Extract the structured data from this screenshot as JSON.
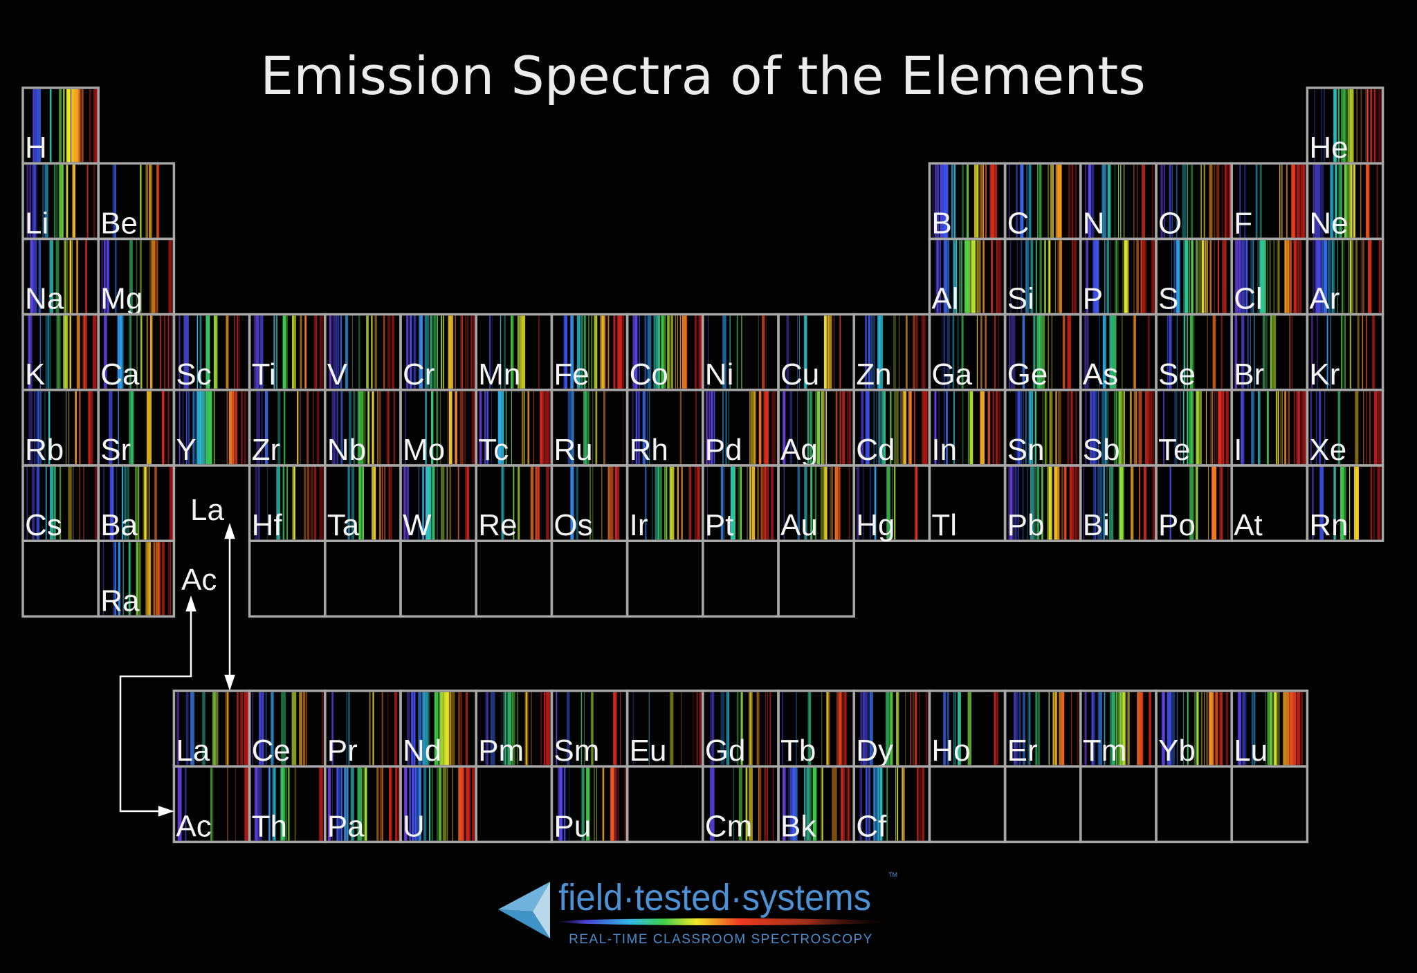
{
  "title": "Emission Spectra of the Elements",
  "main_table": [
    {
      "symbol": "H",
      "period": 1,
      "group": 1
    },
    {
      "symbol": "He",
      "period": 1,
      "group": 18
    },
    {
      "symbol": "Li",
      "period": 2,
      "group": 1
    },
    {
      "symbol": "Be",
      "period": 2,
      "group": 2
    },
    {
      "symbol": "B",
      "period": 2,
      "group": 13
    },
    {
      "symbol": "C",
      "period": 2,
      "group": 14
    },
    {
      "symbol": "N",
      "period": 2,
      "group": 15
    },
    {
      "symbol": "O",
      "period": 2,
      "group": 16
    },
    {
      "symbol": "F",
      "period": 2,
      "group": 17
    },
    {
      "symbol": "Ne",
      "period": 2,
      "group": 18
    },
    {
      "symbol": "Na",
      "period": 3,
      "group": 1
    },
    {
      "symbol": "Mg",
      "period": 3,
      "group": 2
    },
    {
      "symbol": "Al",
      "period": 3,
      "group": 13
    },
    {
      "symbol": "Si",
      "period": 3,
      "group": 14
    },
    {
      "symbol": "P",
      "period": 3,
      "group": 15
    },
    {
      "symbol": "S",
      "period": 3,
      "group": 16
    },
    {
      "symbol": "Cl",
      "period": 3,
      "group": 17
    },
    {
      "symbol": "Ar",
      "period": 3,
      "group": 18
    },
    {
      "symbol": "K",
      "period": 4,
      "group": 1
    },
    {
      "symbol": "Ca",
      "period": 4,
      "group": 2
    },
    {
      "symbol": "Sc",
      "period": 4,
      "group": 3
    },
    {
      "symbol": "Ti",
      "period": 4,
      "group": 4
    },
    {
      "symbol": "V",
      "period": 4,
      "group": 5
    },
    {
      "symbol": "Cr",
      "period": 4,
      "group": 6
    },
    {
      "symbol": "Mn",
      "period": 4,
      "group": 7
    },
    {
      "symbol": "Fe",
      "period": 4,
      "group": 8
    },
    {
      "symbol": "Co",
      "period": 4,
      "group": 9
    },
    {
      "symbol": "Ni",
      "period": 4,
      "group": 10
    },
    {
      "symbol": "Cu",
      "period": 4,
      "group": 11
    },
    {
      "symbol": "Zn",
      "period": 4,
      "group": 12
    },
    {
      "symbol": "Ga",
      "period": 4,
      "group": 13
    },
    {
      "symbol": "Ge",
      "period": 4,
      "group": 14
    },
    {
      "symbol": "As",
      "period": 4,
      "group": 15
    },
    {
      "symbol": "Se",
      "period": 4,
      "group": 16
    },
    {
      "symbol": "Br",
      "period": 4,
      "group": 17
    },
    {
      "symbol": "Kr",
      "period": 4,
      "group": 18
    },
    {
      "symbol": "Rb",
      "period": 5,
      "group": 1
    },
    {
      "symbol": "Sr",
      "period": 5,
      "group": 2
    },
    {
      "symbol": "Y",
      "period": 5,
      "group": 3
    },
    {
      "symbol": "Zr",
      "period": 5,
      "group": 4
    },
    {
      "symbol": "Nb",
      "period": 5,
      "group": 5
    },
    {
      "symbol": "Mo",
      "period": 5,
      "group": 6
    },
    {
      "symbol": "Tc",
      "period": 5,
      "group": 7
    },
    {
      "symbol": "Ru",
      "period": 5,
      "group": 8
    },
    {
      "symbol": "Rh",
      "period": 5,
      "group": 9
    },
    {
      "symbol": "Pd",
      "period": 5,
      "group": 10
    },
    {
      "symbol": "Ag",
      "period": 5,
      "group": 11
    },
    {
      "symbol": "Cd",
      "period": 5,
      "group": 12
    },
    {
      "symbol": "In",
      "period": 5,
      "group": 13
    },
    {
      "symbol": "Sn",
      "period": 5,
      "group": 14
    },
    {
      "symbol": "Sb",
      "period": 5,
      "group": 15
    },
    {
      "symbol": "Te",
      "period": 5,
      "group": 16
    },
    {
      "symbol": "I",
      "period": 5,
      "group": 17
    },
    {
      "symbol": "Xe",
      "period": 5,
      "group": 18
    },
    {
      "symbol": "Cs",
      "period": 6,
      "group": 1
    },
    {
      "symbol": "Ba",
      "period": 6,
      "group": 2
    },
    {
      "symbol": "Hf",
      "period": 6,
      "group": 4
    },
    {
      "symbol": "Ta",
      "period": 6,
      "group": 5
    },
    {
      "symbol": "W",
      "period": 6,
      "group": 6
    },
    {
      "symbol": "Re",
      "period": 6,
      "group": 7
    },
    {
      "symbol": "Os",
      "period": 6,
      "group": 8
    },
    {
      "symbol": "Ir",
      "period": 6,
      "group": 9
    },
    {
      "symbol": "Pt",
      "period": 6,
      "group": 10
    },
    {
      "symbol": "Au",
      "period": 6,
      "group": 11
    },
    {
      "symbol": "Hg",
      "period": 6,
      "group": 12
    },
    {
      "symbol": "Tl",
      "period": 6,
      "group": 13,
      "spectrum": false
    },
    {
      "symbol": "Pb",
      "period": 6,
      "group": 14
    },
    {
      "symbol": "Bi",
      "period": 6,
      "group": 15
    },
    {
      "symbol": "Po",
      "period": 6,
      "group": 16
    },
    {
      "symbol": "At",
      "period": 6,
      "group": 17,
      "spectrum": false
    },
    {
      "symbol": "Rn",
      "period": 6,
      "group": 18
    },
    {
      "symbol": "",
      "period": 7,
      "group": 1,
      "spectrum": false
    },
    {
      "symbol": "Ra",
      "period": 7,
      "group": 2
    },
    {
      "symbol": "",
      "period": 7,
      "group": 4,
      "spectrum": false
    },
    {
      "symbol": "",
      "period": 7,
      "group": 5,
      "spectrum": false
    },
    {
      "symbol": "",
      "period": 7,
      "group": 6,
      "spectrum": false
    },
    {
      "symbol": "",
      "period": 7,
      "group": 7,
      "spectrum": false
    },
    {
      "symbol": "",
      "period": 7,
      "group": 8,
      "spectrum": false
    },
    {
      "symbol": "",
      "period": 7,
      "group": 9,
      "spectrum": false
    },
    {
      "symbol": "",
      "period": 7,
      "group": 10,
      "spectrum": false
    },
    {
      "symbol": "",
      "period": 7,
      "group": 11,
      "spectrum": false
    }
  ],
  "placeholders": {
    "lanthanide_label": "La",
    "actinide_label": "Ac"
  },
  "lanthanides": [
    "La",
    "Ce",
    "Pr",
    "Nd",
    "Pm",
    "Sm",
    "Eu",
    "Gd",
    "Tb",
    "Dy",
    "Ho",
    "Er",
    "Tm",
    "Yb",
    "Lu"
  ],
  "actinides": [
    "Ac",
    "Th",
    "Pa",
    "U",
    "",
    "Pu",
    "",
    "Cm",
    "Bk",
    "Cf",
    "",
    "",
    "",
    "",
    ""
  ],
  "logo": {
    "brand": "field·tested·systems",
    "trademark": "TM",
    "tagline": "REAL-TIME CLASSROOM SPECTROSCOPY",
    "colors": {
      "brand_blue": "#4b93d6",
      "triangle_light": "#b9d9ea",
      "triangle_dark": "#3f93c6"
    }
  },
  "colors": {
    "background": "#020202",
    "cell_border": "#a7a7a7",
    "text": "#f4f4f4"
  }
}
